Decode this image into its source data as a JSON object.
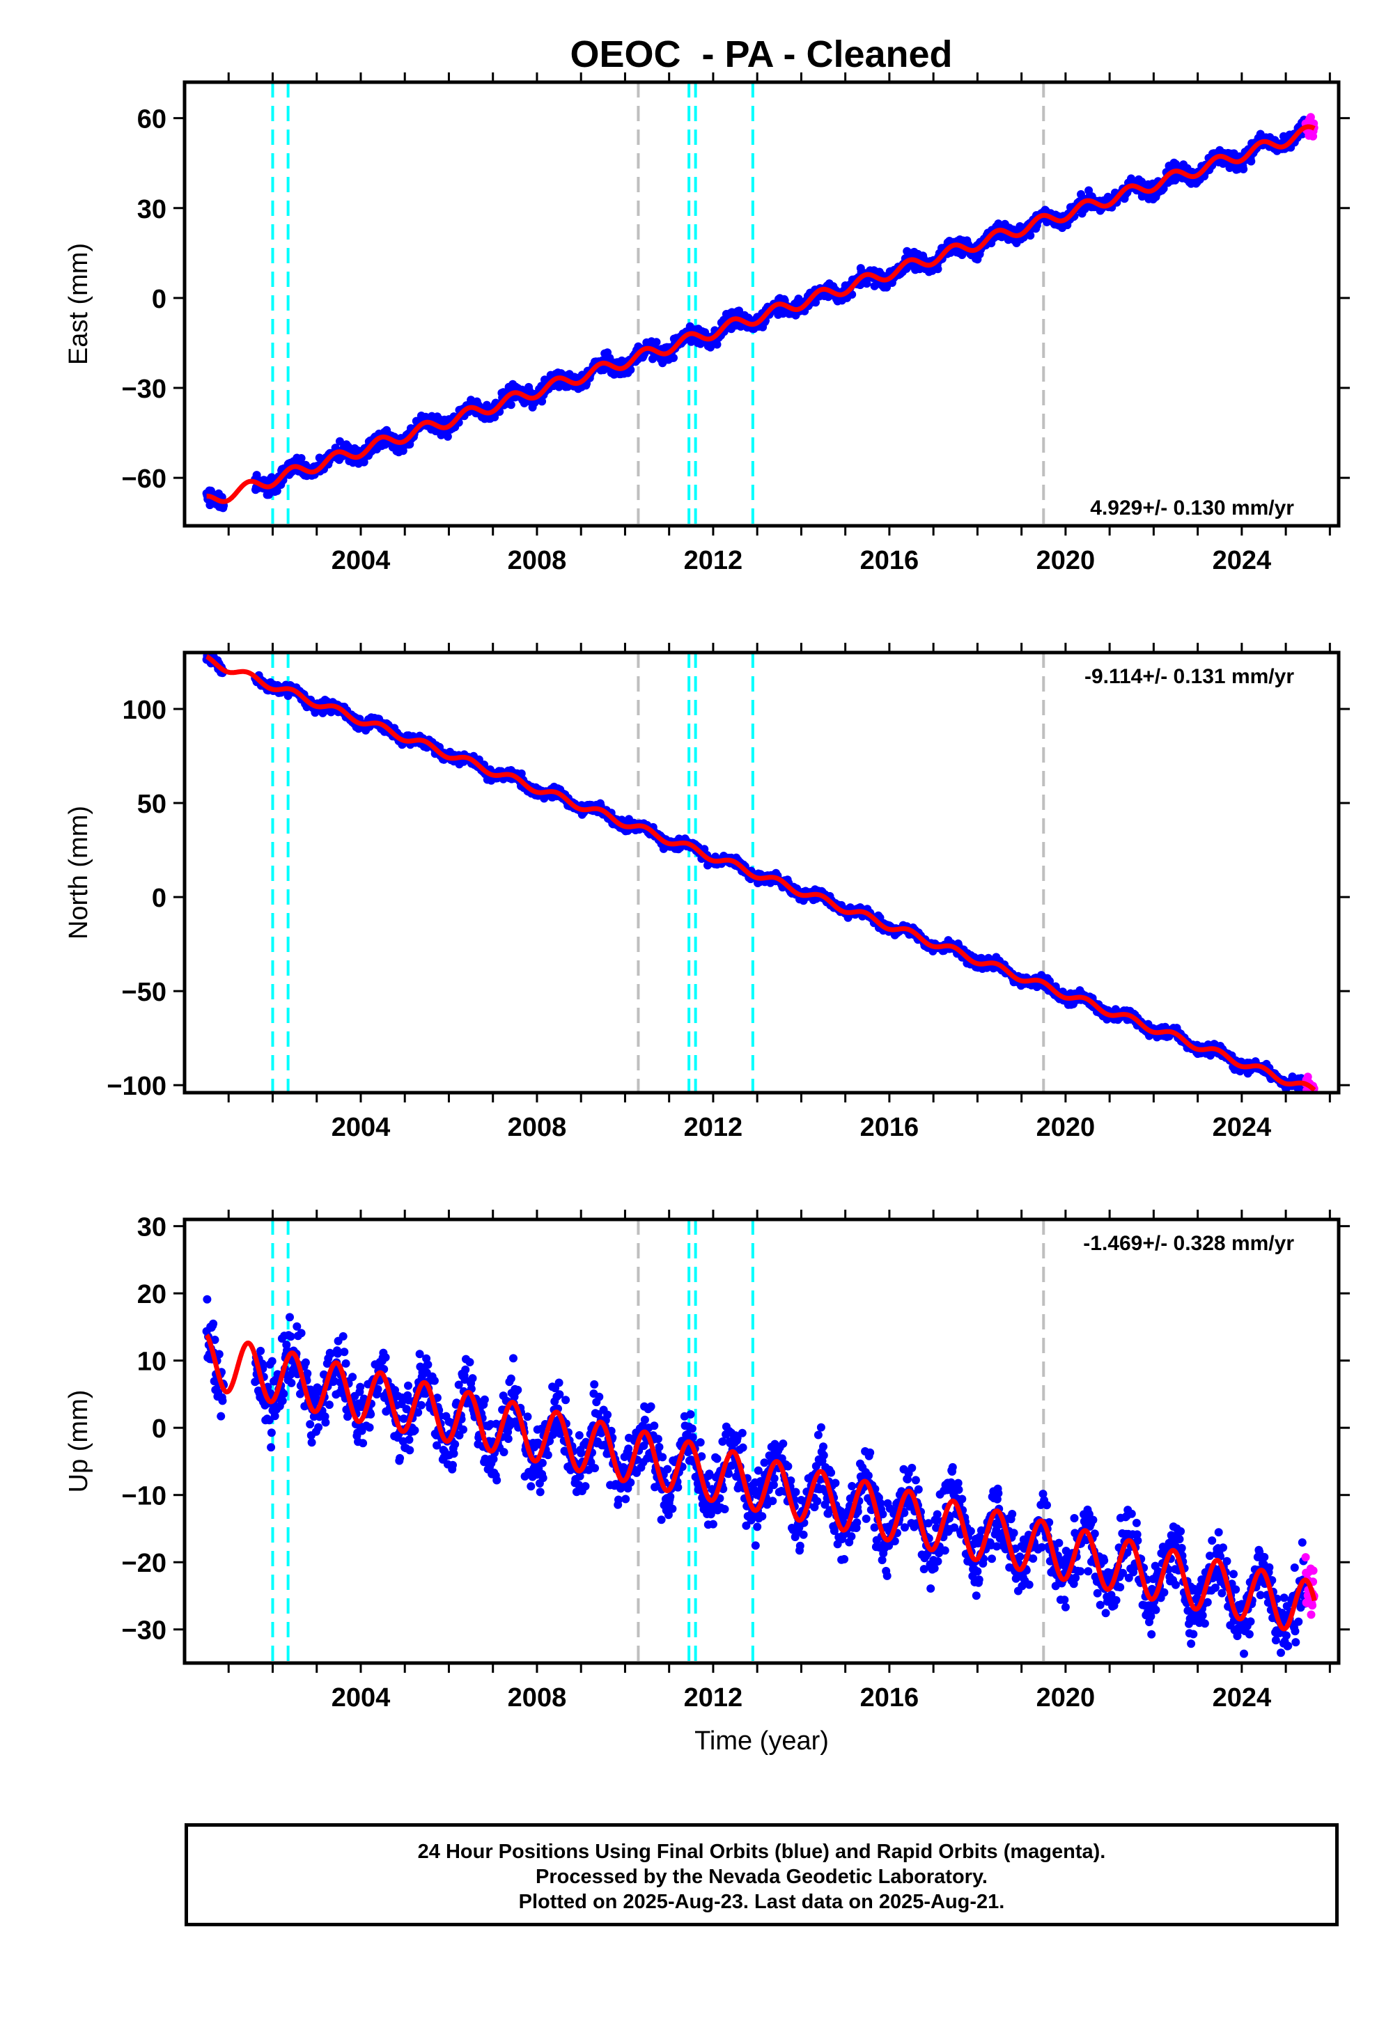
{
  "chart_data": [
    {
      "type": "scatter",
      "title": "OEOC  - PA - Cleaned",
      "ylabel": "East (mm)",
      "xlabel": "",
      "xlim": [
        2000.0,
        2026.2
      ],
      "ylim": [
        -76,
        72
      ],
      "xticks": [
        2004,
        2008,
        2012,
        2016,
        2020,
        2024
      ],
      "yticks": [
        -60,
        -30,
        0,
        30,
        60
      ],
      "rate_label": "4.929+/- 0.130 mm/yr",
      "rate_label_position": "bottom-right",
      "slope_mm_per_yr": 4.929,
      "fit_offset_at_2000_5": -68,
      "seasonal_amplitude": 2.0,
      "noise": 2.0,
      "dashed_lines": {
        "cyan": [
          2002.0,
          2002.35,
          2011.45,
          2011.6,
          2012.9
        ],
        "gray": [
          2010.3,
          2019.5
        ]
      },
      "series": [
        {
          "name": "Final Orbits",
          "color": "#0000ff",
          "x_range": [
            2000.5,
            2025.45
          ]
        },
        {
          "name": "Rapid Orbits",
          "color": "#ff00ff",
          "x_range": [
            2025.45,
            2025.65
          ]
        },
        {
          "name": "Model",
          "color": "#ff0000"
        }
      ]
    },
    {
      "type": "scatter",
      "title": "",
      "ylabel": "North (mm)",
      "xlabel": "",
      "xlim": [
        2000.0,
        2026.2
      ],
      "ylim": [
        -104,
        130
      ],
      "xticks": [
        2004,
        2008,
        2012,
        2016,
        2020,
        2024
      ],
      "yticks": [
        -100,
        -50,
        0,
        50,
        100
      ],
      "rate_label": "-9.114+/- 0.131 mm/yr",
      "rate_label_position": "top-right",
      "slope_mm_per_yr": -9.114,
      "fit_offset_at_2000_5": 126,
      "seasonal_amplitude": 2.0,
      "noise": 2.0,
      "dashed_lines": {
        "cyan": [
          2002.0,
          2002.35,
          2011.45,
          2011.6,
          2012.9
        ],
        "gray": [
          2010.3,
          2019.5
        ]
      },
      "series": [
        {
          "name": "Final Orbits",
          "color": "#0000ff",
          "x_range": [
            2000.5,
            2025.45
          ]
        },
        {
          "name": "Rapid Orbits",
          "color": "#ff00ff",
          "x_range": [
            2025.45,
            2025.65
          ]
        },
        {
          "name": "Model",
          "color": "#ff0000"
        }
      ]
    },
    {
      "type": "scatter",
      "title": "",
      "ylabel": "Up (mm)",
      "xlabel": "Time (year)",
      "xlim": [
        2000.0,
        2026.2
      ],
      "ylim": [
        -35,
        31
      ],
      "xticks": [
        2004,
        2008,
        2012,
        2016,
        2020,
        2024
      ],
      "yticks": [
        -30,
        -20,
        -10,
        0,
        10,
        20,
        30
      ],
      "rate_label": "-1.469+/- 0.328 mm/yr",
      "rate_label_position": "top-right",
      "slope_mm_per_yr": -1.469,
      "fit_offset_at_2000_5": 10,
      "seasonal_amplitude": 4.0,
      "noise": 3.5,
      "dashed_lines": {
        "cyan": [
          2002.0,
          2002.35,
          2011.45,
          2011.6,
          2012.9
        ],
        "gray": [
          2010.3,
          2019.5
        ]
      },
      "series": [
        {
          "name": "Final Orbits",
          "color": "#0000ff",
          "x_range": [
            2000.5,
            2025.45
          ]
        },
        {
          "name": "Rapid Orbits",
          "color": "#ff00ff",
          "x_range": [
            2025.45,
            2025.65
          ]
        },
        {
          "name": "Model",
          "color": "#ff0000"
        }
      ]
    }
  ],
  "footer": {
    "line1": "24 Hour Positions Using Final Orbits (blue) and Rapid Orbits (magenta).",
    "line2": "Processed by the Nevada Geodetic Laboratory.",
    "line3": "Plotted on 2025-Aug-23. Last data on 2025-Aug-21."
  }
}
